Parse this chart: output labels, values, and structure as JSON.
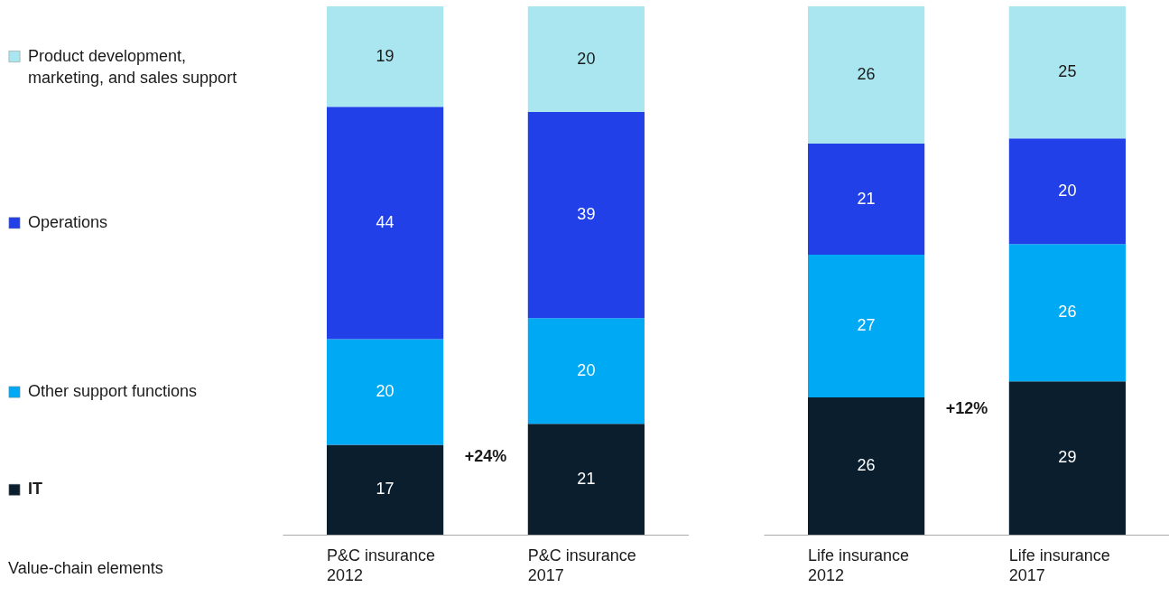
{
  "chart_data": [
    {
      "type": "bar",
      "stacked": true,
      "data_labels": true,
      "legend": "left",
      "legend_title": "Value-chain elements",
      "annotations": [
        "+24%"
      ],
      "categories": [
        "P&C insurance 2012",
        "P&C insurance 2017"
      ],
      "series": [
        {
          "name": "IT",
          "color": "#0a1e2e",
          "values": [
            17,
            21
          ]
        },
        {
          "name": "Other support functions",
          "color": "#00a9f4",
          "values": [
            20,
            20
          ]
        },
        {
          "name": "Operations",
          "color": "#2140e8",
          "values": [
            44,
            39
          ]
        },
        {
          "name": "Product development, marketing, and sales support",
          "color": "#aae6f0",
          "values": [
            19,
            20
          ]
        }
      ]
    },
    {
      "type": "bar",
      "stacked": true,
      "data_labels": true,
      "annotations": [
        "+12%"
      ],
      "categories": [
        "Life insurance 2012",
        "Life insurance 2017"
      ],
      "series": [
        {
          "color": "#0a1e2e",
          "values": [
            26,
            29
          ]
        },
        {
          "color": "#00a9f4",
          "values": [
            27,
            26
          ]
        },
        {
          "color": "#2140e8",
          "values": [
            21,
            20
          ]
        },
        {
          "color": "#aae6f0",
          "values": [
            26,
            25
          ]
        }
      ]
    }
  ]
}
